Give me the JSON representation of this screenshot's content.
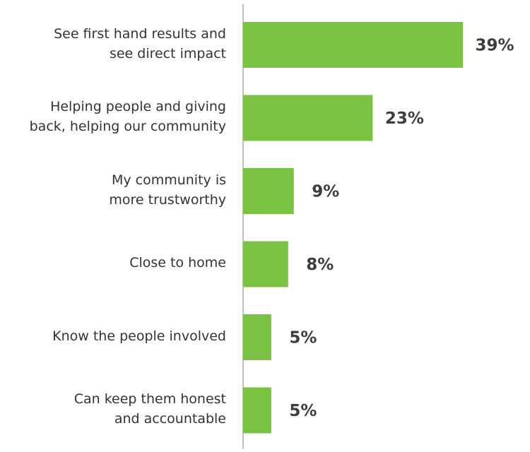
{
  "chart_data": {
    "type": "bar",
    "orientation": "horizontal",
    "categories": [
      "See first hand results and\nsee direct impact",
      "Helping people and giving\nback, helping our community",
      "My community is\nmore trustworthy",
      "Close to home",
      "Know the people involved",
      "Can keep them honest\nand accountable"
    ],
    "values": [
      39,
      23,
      9,
      8,
      5,
      5
    ],
    "value_labels": [
      "39%",
      "23%",
      "9%",
      "8%",
      "5%",
      "5%"
    ],
    "title": "",
    "xlabel": "",
    "ylabel": "",
    "xlim": [
      0,
      39
    ],
    "grid": false,
    "legend": "none",
    "bar_color": "#7cc242",
    "axis_color": "#999999",
    "label_color": "#333333",
    "value_label_color": "#3d3d3d"
  }
}
